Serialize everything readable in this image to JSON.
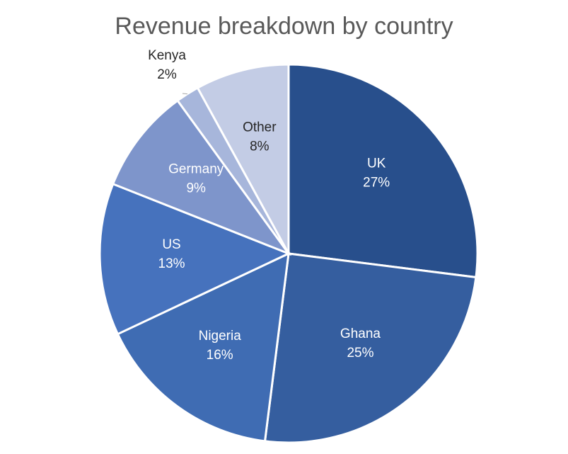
{
  "chart_data": {
    "type": "pie",
    "title": "Revenue breakdown by country",
    "legend": "none",
    "start_angle_deg": 0,
    "direction": "clockwise",
    "slices": [
      {
        "name": "UK",
        "value": 27,
        "label": "27%",
        "color": "#284F8C"
      },
      {
        "name": "Ghana",
        "value": 25,
        "label": "25%",
        "color": "#355E9F"
      },
      {
        "name": "Nigeria",
        "value": 16,
        "label": "16%",
        "color": "#3F6CB3"
      },
      {
        "name": "US",
        "value": 13,
        "label": "13%",
        "color": "#4672BD"
      },
      {
        "name": "Germany",
        "value": 9,
        "label": "9%",
        "color": "#7E95CB"
      },
      {
        "name": "Kenya",
        "value": 2,
        "label": "2%",
        "color": "#A7B6DB"
      },
      {
        "name": "Other",
        "value": 8,
        "label": "8%",
        "color": "#C3CCE5"
      }
    ]
  }
}
